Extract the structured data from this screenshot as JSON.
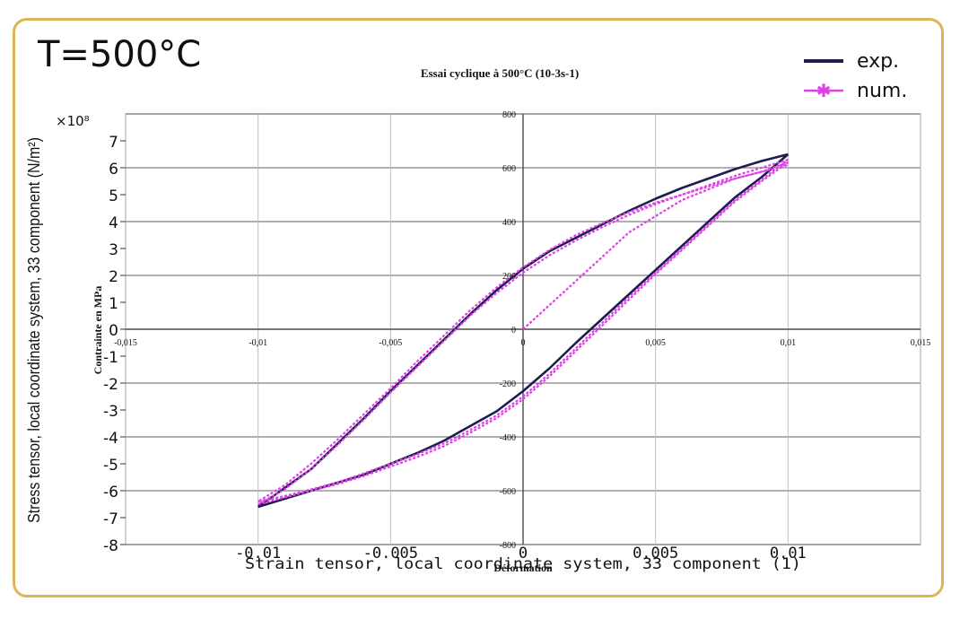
{
  "panel_label": "T=500°C",
  "colors": {
    "frame": "#dcb557",
    "exp": "#1d1d4f",
    "num": "#e040e8",
    "grid": "#808080"
  },
  "chart_data": {
    "type": "line",
    "title": "Essai cyclique à 500°C (10-3s-1)",
    "xlabel": "Strain tensor, local coordinate system, 33 component (1)",
    "ylabel": "Stress tensor, local coordinate system, 33 component (N/m²)",
    "ylabel_multiplier": "×10⁸",
    "inner_xlabel": "Déformation",
    "inner_ylabel": "Contrainte en MPa",
    "xlim": [
      -0.015,
      0.015
    ],
    "ylim": [
      -8,
      8
    ],
    "outer_x_ticks": [
      "-0.01",
      "-0.005",
      "0",
      "0.005",
      "0.01"
    ],
    "outer_x_tick_values": [
      -0.01,
      -0.005,
      0,
      0.005,
      0.01
    ],
    "outer_y_ticks": [
      "-8",
      "-7",
      "-6",
      "-5",
      "-4",
      "-3",
      "-2",
      "-1",
      "0",
      "1",
      "2",
      "3",
      "4",
      "5",
      "6",
      "7"
    ],
    "outer_y_tick_values": [
      -8,
      -7,
      -6,
      -5,
      -4,
      -3,
      -2,
      -1,
      0,
      1,
      2,
      3,
      4,
      5,
      6,
      7
    ],
    "inner_x_ticks": [
      "-0,015",
      "-0,01",
      "-0,005",
      "0",
      "0,005",
      "0,01",
      "0,015"
    ],
    "inner_x_tick_values": [
      -0.015,
      -0.01,
      -0.005,
      0,
      0.005,
      0.01,
      0.015
    ],
    "inner_y_ticks": [
      "-800",
      "-600",
      "-400",
      "-200",
      "0",
      "200",
      "400",
      "600",
      "800"
    ],
    "inner_y_tick_values": [
      -8,
      -6,
      -4,
      -2,
      0,
      2,
      4,
      6,
      8
    ],
    "legend_position": "top-right",
    "series": [
      {
        "name": "exp.",
        "loops": [
          {
            "x": [
              0.01,
              0.009,
              0.008,
              0.007,
              0.006,
              0.005,
              0.004,
              0.003,
              0.002,
              0.001,
              0,
              -0.001,
              -0.002,
              -0.003,
              -0.004,
              -0.005,
              -0.006,
              -0.007,
              -0.008,
              -0.009,
              -0.01
            ],
            "y": [
              6.5,
              6.25,
              5.95,
              5.6,
              5.25,
              4.85,
              4.4,
              3.9,
              3.4,
              2.9,
              2.25,
              1.45,
              0.55,
              -0.4,
              -1.35,
              -2.3,
              -3.3,
              -4.25,
              -5.2,
              -5.9,
              -6.6
            ]
          },
          {
            "x": [
              -0.01,
              -0.009,
              -0.008,
              -0.007,
              -0.006,
              -0.005,
              -0.004,
              -0.003,
              -0.002,
              -0.001,
              0,
              0.001,
              0.002,
              0.003,
              0.004,
              0.005,
              0.006,
              0.007,
              0.008,
              0.009,
              0.01
            ],
            "y": [
              -6.6,
              -6.3,
              -6.0,
              -5.7,
              -5.4,
              -5.0,
              -4.6,
              -4.15,
              -3.6,
              -3.05,
              -2.3,
              -1.45,
              -0.5,
              0.4,
              1.3,
              2.2,
              3.1,
              4.0,
              4.9,
              5.65,
              6.5
            ]
          }
        ]
      },
      {
        "name": "num.",
        "loops": [
          {
            "x": [
              0,
              0.002,
              0.004,
              0.006,
              0.008,
              0.01
            ],
            "y": [
              0,
              1.8,
              3.6,
              4.8,
              5.6,
              6.1
            ]
          },
          {
            "x": [
              0.01,
              0.009,
              0.008,
              0.007,
              0.006,
              0.005,
              0.004,
              0.003,
              0.002,
              0.001,
              0,
              -0.001,
              -0.002,
              -0.003,
              -0.004,
              -0.005,
              -0.006,
              -0.007,
              -0.008,
              -0.009,
              -0.01
            ],
            "y": [
              6.2,
              5.85,
              5.6,
              5.3,
              5.0,
              4.7,
              4.35,
              3.95,
              3.5,
              2.95,
              2.3,
              1.55,
              0.7,
              -0.25,
              -1.2,
              -2.2,
              -3.15,
              -4.1,
              -5.0,
              -5.8,
              -6.4
            ]
          },
          {
            "x": [
              -0.01,
              -0.009,
              -0.008,
              -0.007,
              -0.006,
              -0.005,
              -0.004,
              -0.003,
              -0.002,
              -0.001,
              0,
              0.001,
              0.002,
              0.003,
              0.004,
              0.005,
              0.006,
              0.007,
              0.008,
              0.009,
              0.01
            ],
            "y": [
              -6.4,
              -6.2,
              -5.95,
              -5.7,
              -5.35,
              -5.0,
              -4.65,
              -4.25,
              -3.75,
              -3.2,
              -2.5,
              -1.65,
              -0.7,
              0.25,
              1.2,
              2.1,
              3.0,
              3.9,
              4.8,
              5.55,
              6.3
            ]
          },
          {
            "x": [
              0.01,
              0.009,
              0.008,
              0.007,
              0.006,
              0.005,
              0.004,
              0.003,
              0.002,
              0.001,
              0,
              -0.001,
              -0.002,
              -0.003,
              -0.004,
              -0.005,
              -0.006,
              -0.007,
              -0.008,
              -0.009,
              -0.01
            ],
            "y": [
              6.3,
              6.0,
              5.7,
              5.35,
              5.0,
              4.65,
              4.25,
              3.8,
              3.3,
              2.75,
              2.1,
              1.35,
              0.5,
              -0.45,
              -1.4,
              -2.35,
              -3.35,
              -4.3,
              -5.2,
              -5.95,
              -6.5
            ]
          },
          {
            "x": [
              -0.01,
              -0.009,
              -0.008,
              -0.007,
              -0.006,
              -0.005,
              -0.004,
              -0.003,
              -0.002,
              -0.001,
              0,
              0.001,
              0.002,
              0.003,
              0.004,
              0.005,
              0.006,
              0.007,
              0.008,
              0.009,
              0.01
            ],
            "y": [
              -6.5,
              -6.25,
              -6.0,
              -5.75,
              -5.45,
              -5.1,
              -4.75,
              -4.35,
              -3.85,
              -3.3,
              -2.6,
              -1.75,
              -0.8,
              0.15,
              1.1,
              2.05,
              2.95,
              3.85,
              4.75,
              5.5,
              6.2
            ]
          }
        ]
      }
    ]
  }
}
